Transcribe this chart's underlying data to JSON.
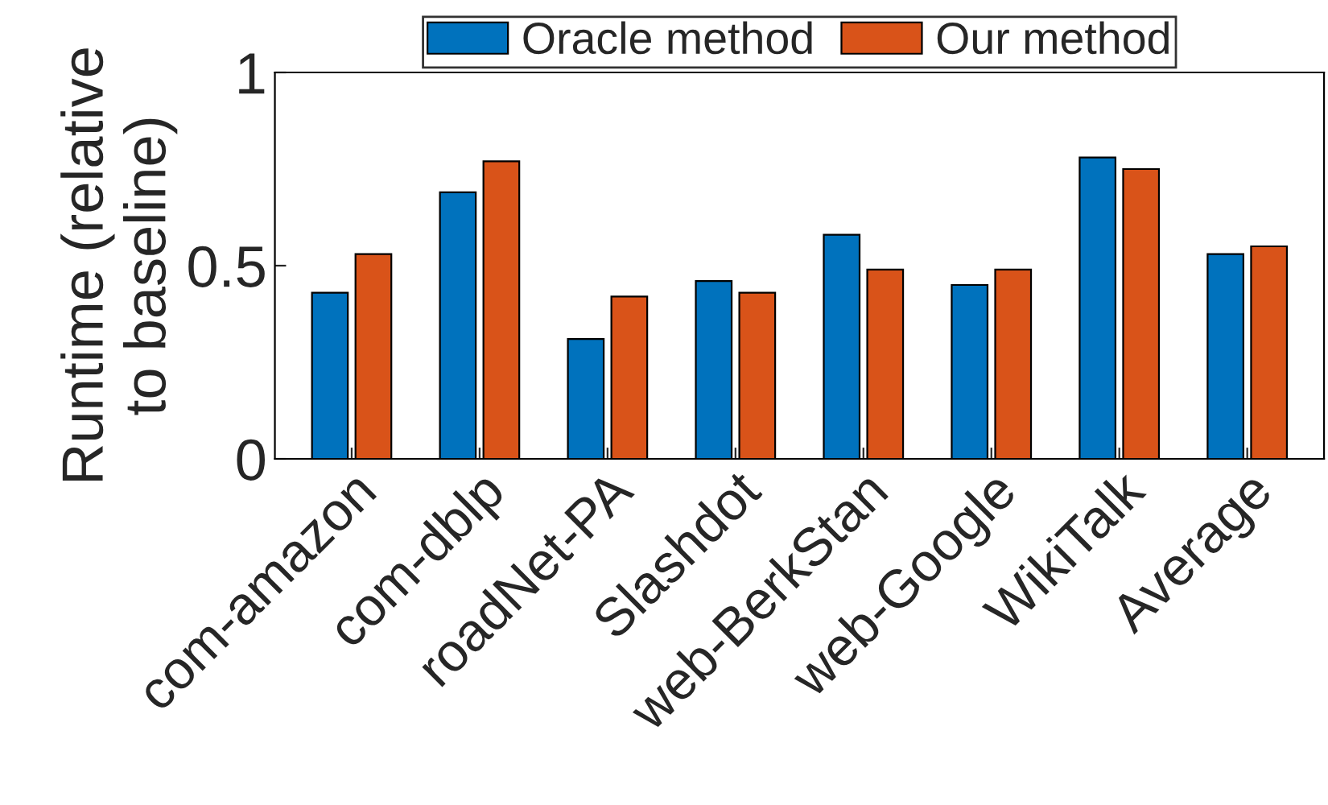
{
  "chart_data": {
    "type": "bar",
    "ylabel": "Runtime (relative\nto baseline)",
    "categories": [
      "com-amazon",
      "com-dblp",
      "roadNet-PA",
      "Slashdot",
      "web-BerkStan",
      "web-Google",
      "WikiTalk",
      "Average"
    ],
    "series": [
      {
        "name": "Oracle method",
        "color": "#0072bd",
        "values": [
          0.43,
          0.69,
          0.31,
          0.46,
          0.58,
          0.45,
          0.78,
          0.53
        ]
      },
      {
        "name": "Our method",
        "color": "#d95319",
        "values": [
          0.53,
          0.77,
          0.42,
          0.43,
          0.49,
          0.49,
          0.75,
          0.55
        ]
      }
    ],
    "ylim": [
      0,
      1
    ],
    "yticks": [
      0,
      0.5,
      1
    ],
    "grid": false,
    "legend": "top"
  }
}
